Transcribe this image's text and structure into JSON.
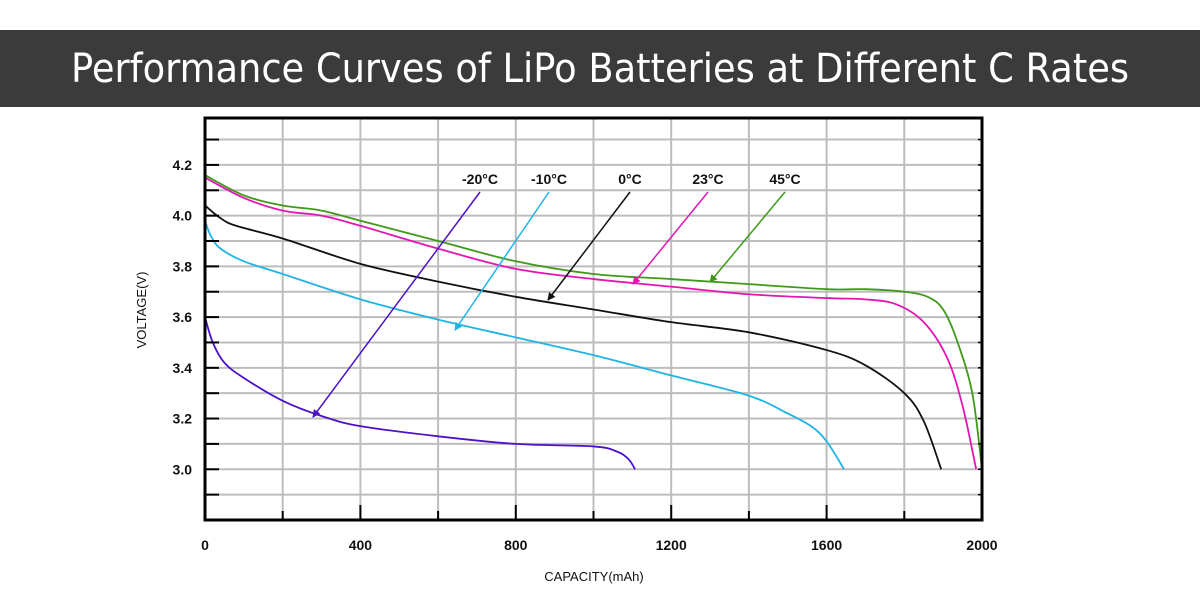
{
  "title": "Performance Curves of LiPo Batteries at Different C Rates",
  "chart_data": {
    "type": "line",
    "title": "Performance Curves of LiPo Batteries at Different C Rates",
    "xlabel": "CAPACITY(mAh)",
    "ylabel": "VOLTAGE(V)",
    "xlim": [
      0,
      2000
    ],
    "ylim": [
      2.8,
      4.385
    ],
    "xticks": [
      "0",
      "400",
      "800",
      "1200",
      "1600",
      "2000"
    ],
    "yticks": [
      "3.0",
      "3.2",
      "3.4",
      "3.6",
      "3.8",
      "4.0",
      "4.2"
    ],
    "grid": true,
    "grid_step": {
      "x": 200,
      "y": 0.1
    },
    "series": [
      {
        "name": "-20°C",
        "color": "#4b12c8",
        "points": [
          [
            0,
            3.6
          ],
          [
            20,
            3.5
          ],
          [
            50,
            3.42
          ],
          [
            100,
            3.36
          ],
          [
            200,
            3.27
          ],
          [
            300,
            3.21
          ],
          [
            400,
            3.17
          ],
          [
            600,
            3.13
          ],
          [
            800,
            3.1
          ],
          [
            1000,
            3.09
          ],
          [
            1060,
            3.07
          ],
          [
            1090,
            3.04
          ],
          [
            1107,
            3.0
          ]
        ]
      },
      {
        "name": "-10°C",
        "color": "#1fb4e6",
        "points": [
          [
            0,
            3.98
          ],
          [
            15,
            3.92
          ],
          [
            40,
            3.87
          ],
          [
            100,
            3.82
          ],
          [
            200,
            3.77
          ],
          [
            400,
            3.67
          ],
          [
            600,
            3.59
          ],
          [
            800,
            3.52
          ],
          [
            1000,
            3.45
          ],
          [
            1200,
            3.37
          ],
          [
            1400,
            3.29
          ],
          [
            1500,
            3.22
          ],
          [
            1560,
            3.17
          ],
          [
            1600,
            3.11
          ],
          [
            1645,
            3.0
          ]
        ]
      },
      {
        "name": "0°C",
        "color": "#111111",
        "points": [
          [
            0,
            4.04
          ],
          [
            40,
            3.99
          ],
          [
            80,
            3.96
          ],
          [
            200,
            3.91
          ],
          [
            400,
            3.81
          ],
          [
            600,
            3.74
          ],
          [
            800,
            3.68
          ],
          [
            1000,
            3.63
          ],
          [
            1200,
            3.58
          ],
          [
            1400,
            3.54
          ],
          [
            1600,
            3.47
          ],
          [
            1700,
            3.41
          ],
          [
            1800,
            3.3
          ],
          [
            1850,
            3.19
          ],
          [
            1895,
            3.0
          ]
        ]
      },
      {
        "name": "23°C",
        "color": "#e316b4",
        "points": [
          [
            0,
            4.15
          ],
          [
            100,
            4.07
          ],
          [
            200,
            4.02
          ],
          [
            300,
            4.0
          ],
          [
            400,
            3.96
          ],
          [
            600,
            3.87
          ],
          [
            800,
            3.79
          ],
          [
            1000,
            3.75
          ],
          [
            1200,
            3.72
          ],
          [
            1400,
            3.69
          ],
          [
            1600,
            3.675
          ],
          [
            1700,
            3.67
          ],
          [
            1780,
            3.65
          ],
          [
            1850,
            3.58
          ],
          [
            1910,
            3.44
          ],
          [
            1950,
            3.25
          ],
          [
            1985,
            3.0
          ]
        ]
      },
      {
        "name": "45°C",
        "color": "#3f9a1a",
        "points": [
          [
            0,
            4.16
          ],
          [
            100,
            4.08
          ],
          [
            200,
            4.04
          ],
          [
            300,
            4.02
          ],
          [
            400,
            3.98
          ],
          [
            600,
            3.9
          ],
          [
            800,
            3.82
          ],
          [
            1000,
            3.77
          ],
          [
            1200,
            3.75
          ],
          [
            1400,
            3.73
          ],
          [
            1600,
            3.71
          ],
          [
            1700,
            3.71
          ],
          [
            1800,
            3.7
          ],
          [
            1860,
            3.68
          ],
          [
            1900,
            3.63
          ],
          [
            1935,
            3.51
          ],
          [
            1975,
            3.3
          ],
          [
            2000,
            3.0
          ]
        ]
      }
    ]
  }
}
